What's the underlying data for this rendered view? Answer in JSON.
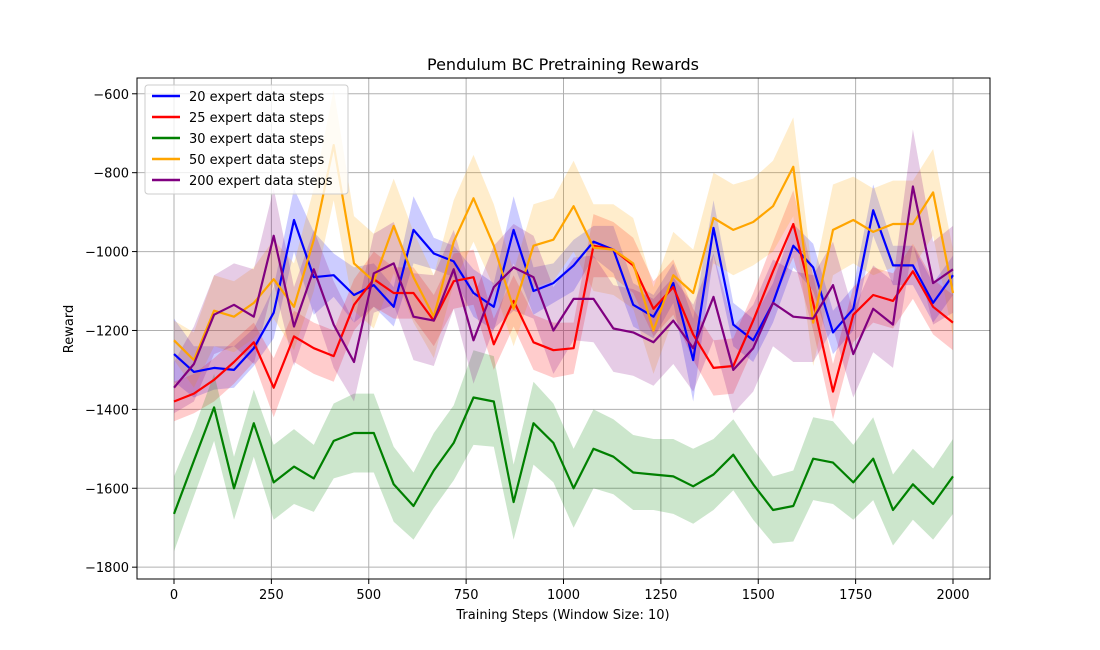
{
  "chart_data": {
    "type": "line",
    "title": "Pendulum BC Pretraining Rewards",
    "xlabel": "Training Steps (Window Size: 10)",
    "ylabel": "Reward",
    "xlim": [
      -95,
      2095
    ],
    "ylim": [
      -1830,
      -560
    ],
    "xticks": [
      0,
      250,
      500,
      750,
      1000,
      1250,
      1500,
      1750,
      2000
    ],
    "yticks": [
      -1800,
      -1600,
      -1400,
      -1200,
      -1000,
      -800,
      -600
    ],
    "xtick_labels": [
      "0",
      "250",
      "500",
      "750",
      "1000",
      "1250",
      "1500",
      "1750",
      "2000"
    ],
    "ytick_labels": [
      "−1800",
      "−1600",
      "−1400",
      "−1200",
      "−1000",
      "−800",
      "−600"
    ],
    "grid": true,
    "legend_position": "top-left",
    "x": [
      0,
      51,
      103,
      154,
      205,
      256,
      308,
      359,
      410,
      462,
      513,
      564,
      615,
      667,
      718,
      769,
      821,
      872,
      923,
      974,
      1026,
      1077,
      1128,
      1179,
      1231,
      1282,
      1333,
      1385,
      1436,
      1487,
      1538,
      1590,
      1641,
      1692,
      1744,
      1795,
      1846,
      1897,
      1949,
      2000
    ],
    "series": [
      {
        "name": "20 expert data steps",
        "color": "#0000ff",
        "values": [
          -1260,
          -1305,
          -1295,
          -1300,
          -1245,
          -1155,
          -920,
          -1065,
          -1060,
          -1110,
          -1085,
          -1140,
          -945,
          -1005,
          -1025,
          -1105,
          -1140,
          -945,
          -1100,
          -1080,
          -1035,
          -975,
          -995,
          -1135,
          -1165,
          -1080,
          -1275,
          -940,
          -1185,
          -1225,
          -1130,
          -985,
          -1040,
          -1205,
          -1145,
          -895,
          -1035,
          -1035,
          -1130,
          -1060
        ],
        "upper": [
          -1170,
          -1240,
          -1240,
          -1240,
          -1195,
          -1090,
          -840,
          -950,
          -1005,
          -1040,
          -1030,
          -1090,
          -860,
          -965,
          -985,
          -1045,
          -1080,
          -860,
          -1040,
          -1030,
          -970,
          -935,
          -935,
          -1080,
          -1110,
          -1030,
          -1170,
          -870,
          -1130,
          -1170,
          -1080,
          -930,
          -980,
          -1150,
          -1090,
          -830,
          -985,
          -985,
          -1080,
          -1010
        ],
        "lower": [
          -1330,
          -1370,
          -1350,
          -1345,
          -1290,
          -1220,
          -1000,
          -1160,
          -1115,
          -1180,
          -1140,
          -1190,
          -1030,
          -1045,
          -1065,
          -1165,
          -1200,
          -1030,
          -1160,
          -1130,
          -1100,
          -1015,
          -1055,
          -1190,
          -1220,
          -1130,
          -1380,
          -1010,
          -1240,
          -1280,
          -1180,
          -1040,
          -1100,
          -1260,
          -1200,
          -960,
          -1085,
          -1085,
          -1180,
          -1110
        ]
      },
      {
        "name": "25 expert data steps",
        "color": "#ff0000",
        "values": [
          -1380,
          -1360,
          -1325,
          -1280,
          -1230,
          -1345,
          -1215,
          -1245,
          -1265,
          -1135,
          -1070,
          -1105,
          -1105,
          -1175,
          -1075,
          -1065,
          -1235,
          -1125,
          -1230,
          -1250,
          -1245,
          -985,
          -995,
          -1035,
          -1145,
          -1090,
          -1210,
          -1295,
          -1290,
          -1175,
          -1050,
          -930,
          -1130,
          -1355,
          -1160,
          -1110,
          -1125,
          -1050,
          -1140,
          -1180
        ],
        "upper": [
          -1330,
          -1310,
          -1270,
          -1225,
          -1180,
          -1270,
          -1150,
          -1180,
          -1200,
          -1070,
          -1000,
          -1040,
          -1040,
          -1110,
          -1005,
          -995,
          -1170,
          -1060,
          -1160,
          -1180,
          -1180,
          -905,
          -925,
          -965,
          -1075,
          -1020,
          -1145,
          -1225,
          -1220,
          -1105,
          -975,
          -845,
          -1060,
          -1285,
          -1090,
          -1040,
          -1055,
          -980,
          -1070,
          -1110
        ],
        "lower": [
          -1430,
          -1410,
          -1380,
          -1335,
          -1280,
          -1420,
          -1280,
          -1310,
          -1330,
          -1200,
          -1140,
          -1170,
          -1170,
          -1240,
          -1145,
          -1135,
          -1300,
          -1190,
          -1300,
          -1320,
          -1310,
          -1065,
          -1065,
          -1105,
          -1215,
          -1160,
          -1275,
          -1365,
          -1360,
          -1245,
          -1125,
          -1015,
          -1200,
          -1425,
          -1230,
          -1180,
          -1195,
          -1120,
          -1210,
          -1250
        ]
      },
      {
        "name": "30 expert data steps",
        "color": "#008000",
        "values": [
          -1665,
          -1530,
          -1395,
          -1600,
          -1435,
          -1585,
          -1545,
          -1575,
          -1480,
          -1460,
          -1460,
          -1590,
          -1645,
          -1555,
          -1485,
          -1370,
          -1380,
          -1635,
          -1435,
          -1485,
          -1600,
          -1500,
          -1520,
          -1560,
          -1565,
          -1570,
          -1595,
          -1565,
          -1515,
          -1590,
          -1655,
          -1645,
          -1525,
          -1535,
          -1585,
          -1525,
          -1655,
          -1590,
          -1640,
          -1570
        ],
        "upper": [
          -1570,
          -1450,
          -1310,
          -1520,
          -1350,
          -1490,
          -1450,
          -1490,
          -1385,
          -1360,
          -1360,
          -1495,
          -1560,
          -1460,
          -1390,
          -1250,
          -1265,
          -1540,
          -1330,
          -1385,
          -1500,
          -1400,
          -1425,
          -1465,
          -1475,
          -1475,
          -1500,
          -1475,
          -1425,
          -1500,
          -1570,
          -1555,
          -1420,
          -1430,
          -1490,
          -1420,
          -1565,
          -1500,
          -1550,
          -1475
        ],
        "lower": [
          -1760,
          -1620,
          -1480,
          -1680,
          -1520,
          -1680,
          -1640,
          -1660,
          -1575,
          -1560,
          -1560,
          -1685,
          -1730,
          -1650,
          -1580,
          -1490,
          -1495,
          -1730,
          -1540,
          -1585,
          -1700,
          -1600,
          -1615,
          -1655,
          -1655,
          -1665,
          -1690,
          -1655,
          -1605,
          -1680,
          -1740,
          -1735,
          -1630,
          -1640,
          -1680,
          -1630,
          -1745,
          -1680,
          -1730,
          -1665
        ]
      },
      {
        "name": "50 expert data steps",
        "color": "#ffa500",
        "values": [
          -1225,
          -1275,
          -1150,
          -1165,
          -1130,
          -1070,
          -1140,
          -970,
          -730,
          -1030,
          -1075,
          -935,
          -1065,
          -1165,
          -975,
          -865,
          -985,
          -1145,
          -985,
          -970,
          -885,
          -990,
          -995,
          -1030,
          -1200,
          -1060,
          -1105,
          -915,
          -945,
          -925,
          -885,
          -785,
          -1180,
          -945,
          -920,
          -950,
          -930,
          -930,
          -850,
          -1105
        ],
        "upper": [
          -1175,
          -1205,
          -1060,
          -1075,
          -1040,
          -970,
          -1030,
          -840,
          -590,
          -910,
          -955,
          -815,
          -950,
          -1060,
          -870,
          -755,
          -880,
          -1050,
          -880,
          -865,
          -770,
          -880,
          -880,
          -915,
          -1090,
          -950,
          -995,
          -800,
          -830,
          -815,
          -770,
          -660,
          -1070,
          -830,
          -810,
          -840,
          -820,
          -820,
          -740,
          -995
        ],
        "lower": [
          -1275,
          -1345,
          -1240,
          -1255,
          -1220,
          -1170,
          -1250,
          -1100,
          -870,
          -1150,
          -1195,
          -1055,
          -1180,
          -1270,
          -1080,
          -975,
          -1090,
          -1240,
          -1090,
          -1075,
          -1000,
          -1100,
          -1110,
          -1145,
          -1310,
          -1170,
          -1215,
          -1030,
          -1060,
          -1035,
          -1000,
          -910,
          -1290,
          -1060,
          -1030,
          -1060,
          -1040,
          -1040,
          -960,
          -1215
        ]
      },
      {
        "name": "200 expert data steps",
        "color": "#800080",
        "values": [
          -1345,
          -1285,
          -1160,
          -1135,
          -1165,
          -960,
          -1190,
          -1045,
          -1185,
          -1280,
          -1055,
          -1030,
          -1165,
          -1175,
          -1045,
          -1225,
          -1090,
          -1040,
          -1065,
          -1200,
          -1120,
          -1120,
          -1195,
          -1205,
          -1230,
          -1175,
          -1245,
          -1115,
          -1300,
          -1245,
          -1130,
          -1165,
          -1170,
          -1085,
          -1260,
          -1145,
          -1185,
          -835,
          -1080,
          -1045
        ],
        "upper": [
          -1280,
          -1190,
          -1060,
          -1030,
          -1045,
          -840,
          -1090,
          -945,
          -1075,
          -1180,
          -955,
          -925,
          -1055,
          -1060,
          -945,
          -1115,
          -985,
          -930,
          -960,
          -1090,
          -1015,
          -1010,
          -1085,
          -1095,
          -1120,
          -1065,
          -1135,
          -1005,
          -1190,
          -1135,
          -1020,
          -1050,
          -1060,
          -975,
          -1150,
          -1035,
          -1075,
          -690,
          -975,
          -935
        ],
        "lower": [
          -1410,
          -1380,
          -1260,
          -1240,
          -1285,
          -1080,
          -1290,
          -1145,
          -1295,
          -1380,
          -1155,
          -1135,
          -1275,
          -1290,
          -1145,
          -1335,
          -1195,
          -1150,
          -1170,
          -1310,
          -1225,
          -1230,
          -1305,
          -1315,
          -1340,
          -1285,
          -1355,
          -1225,
          -1410,
          -1355,
          -1240,
          -1280,
          -1280,
          -1195,
          -1370,
          -1255,
          -1295,
          -980,
          -1185,
          -1155
        ]
      }
    ]
  }
}
